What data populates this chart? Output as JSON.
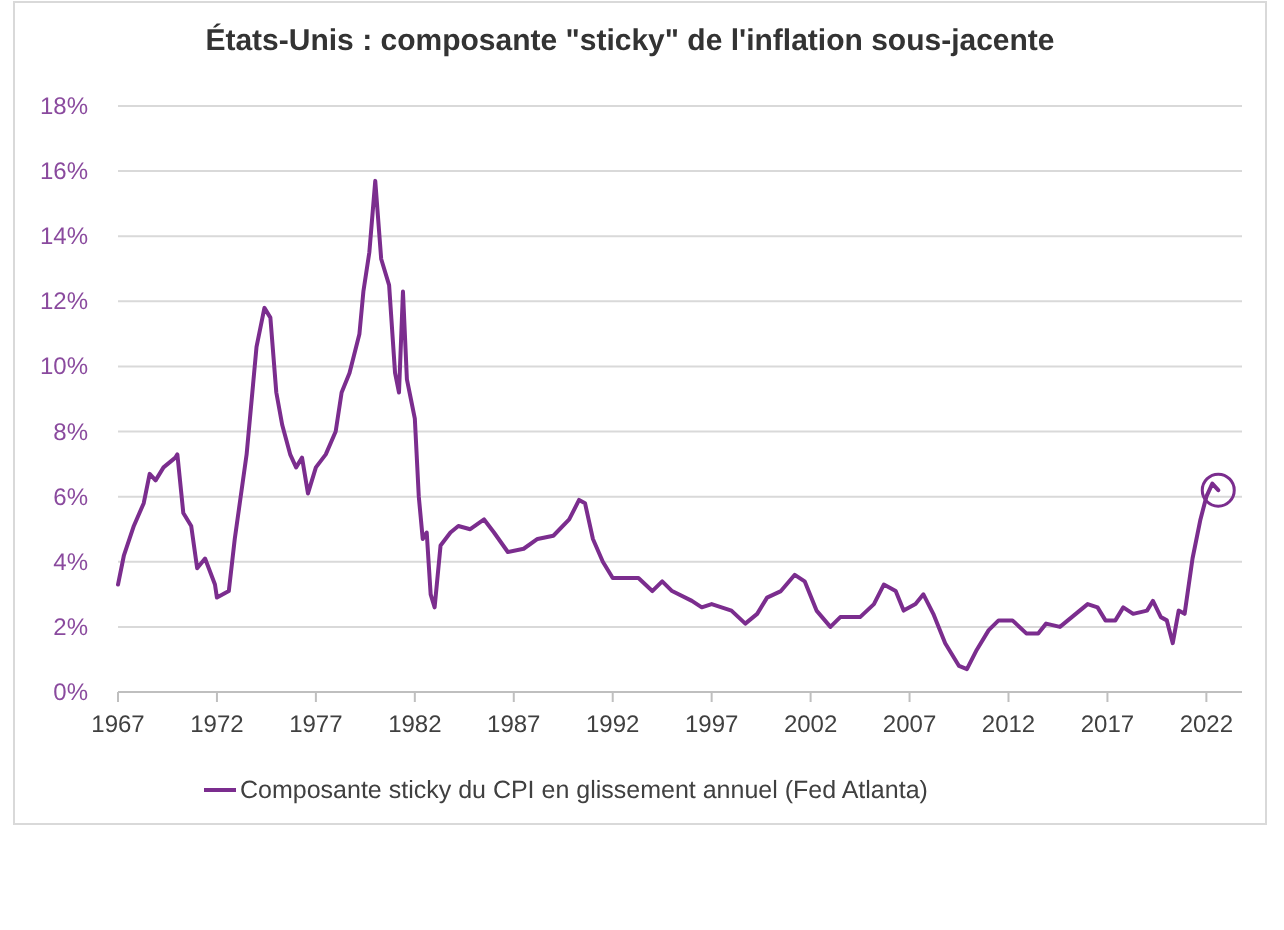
{
  "chart_data": {
    "type": "line",
    "title": "États-Unis : composante \"sticky\" de l'inflation sous-jacente",
    "x": [
      1967.0,
      1967.3,
      1967.8,
      1968.3,
      1968.6,
      1968.9,
      1969.3,
      1969.9,
      1970.0,
      1970.3,
      1970.7,
      1971.0,
      1971.4,
      1971.9,
      1972.0,
      1972.6,
      1972.9,
      1973.5,
      1974.0,
      1974.4,
      1974.7,
      1975.0,
      1975.3,
      1975.7,
      1976.0,
      1976.3,
      1976.6,
      1977.0,
      1977.5,
      1978.0,
      1978.3,
      1978.7,
      1979.2,
      1979.4,
      1979.7,
      1980.0,
      1980.3,
      1980.7,
      1981.0,
      1981.2,
      1981.4,
      1981.6,
      1981.8,
      1982.0,
      1982.2,
      1982.4,
      1982.6,
      1982.8,
      1983.0,
      1983.3,
      1983.8,
      1984.2,
      1984.8,
      1985.5,
      1986.0,
      1986.7,
      1987.5,
      1988.2,
      1989.0,
      1989.8,
      1990.3,
      1990.6,
      1991.0,
      1991.5,
      1992.0,
      1993.3,
      1994.0,
      1994.5,
      1995.0,
      1996.0,
      1996.5,
      1997.0,
      1998.0,
      1998.7,
      1999.3,
      1999.8,
      2000.5,
      2001.2,
      2001.7,
      2002.3,
      2003.0,
      2003.5,
      2004.5,
      2005.2,
      2005.7,
      2006.3,
      2006.7,
      2007.3,
      2007.7,
      2008.2,
      2008.8,
      2009.5,
      2009.9,
      2010.4,
      2011.0,
      2011.5,
      2012.2,
      2012.9,
      2013.5,
      2013.9,
      2014.6,
      2015.4,
      2016.0,
      2016.5,
      2016.9,
      2017.4,
      2017.8,
      2018.3,
      2019.0,
      2019.3,
      2019.7,
      2020.0,
      2020.3,
      2020.6,
      2020.9,
      2021.3,
      2021.7,
      2022.0,
      2022.3,
      2022.6
    ],
    "series": [
      {
        "name": "Composante sticky du CPI en glissement annuel (Fed Atlanta)",
        "color": "#7b2d8e",
        "values": [
          3.3,
          4.2,
          5.1,
          5.8,
          6.7,
          6.5,
          6.9,
          7.2,
          7.3,
          5.5,
          5.1,
          3.8,
          4.1,
          3.3,
          2.9,
          3.1,
          4.7,
          7.3,
          10.6,
          11.8,
          11.5,
          9.2,
          8.2,
          7.3,
          6.9,
          7.2,
          6.1,
          6.9,
          7.3,
          8.0,
          9.2,
          9.8,
          11.0,
          12.3,
          13.5,
          15.7,
          13.3,
          12.5,
          9.8,
          9.2,
          12.3,
          9.6,
          9.0,
          8.4,
          6.0,
          4.7,
          4.9,
          3.0,
          2.6,
          4.5,
          4.9,
          5.1,
          5.0,
          5.3,
          4.9,
          4.3,
          4.4,
          4.7,
          4.8,
          5.3,
          5.9,
          5.8,
          4.7,
          4.0,
          3.5,
          3.5,
          3.1,
          3.4,
          3.1,
          2.8,
          2.6,
          2.7,
          2.5,
          2.1,
          2.4,
          2.9,
          3.1,
          3.6,
          3.4,
          2.5,
          2.0,
          2.3,
          2.3,
          2.7,
          3.3,
          3.1,
          2.5,
          2.7,
          3.0,
          2.4,
          1.5,
          0.8,
          0.7,
          1.3,
          1.9,
          2.2,
          2.2,
          1.8,
          1.8,
          2.1,
          2.0,
          2.4,
          2.7,
          2.6,
          2.2,
          2.2,
          2.6,
          2.4,
          2.5,
          2.8,
          2.3,
          2.2,
          1.5,
          2.5,
          2.4,
          4.1,
          5.3,
          6.0,
          6.4,
          6.2
        ]
      }
    ],
    "xlim": [
      1967,
      2023.8
    ],
    "xticks": [
      1967,
      1972,
      1977,
      1982,
      1987,
      1992,
      1997,
      2002,
      2007,
      2012,
      2017,
      2022
    ],
    "ylim": [
      0,
      18
    ],
    "yticks": [
      {
        "value": 0,
        "label": "0%"
      },
      {
        "value": 2,
        "label": "2%"
      },
      {
        "value": 4,
        "label": "4%"
      },
      {
        "value": 6,
        "label": "6%"
      },
      {
        "value": 8,
        "label": "8%"
      },
      {
        "value": 10,
        "label": "10%"
      },
      {
        "value": 12,
        "label": "12%"
      },
      {
        "value": 14,
        "label": "14%"
      },
      {
        "value": 16,
        "label": "16%"
      },
      {
        "value": 18,
        "label": "18%"
      }
    ],
    "grid": "y",
    "legend": "bottom",
    "marker": "none",
    "line_style": "solid"
  }
}
